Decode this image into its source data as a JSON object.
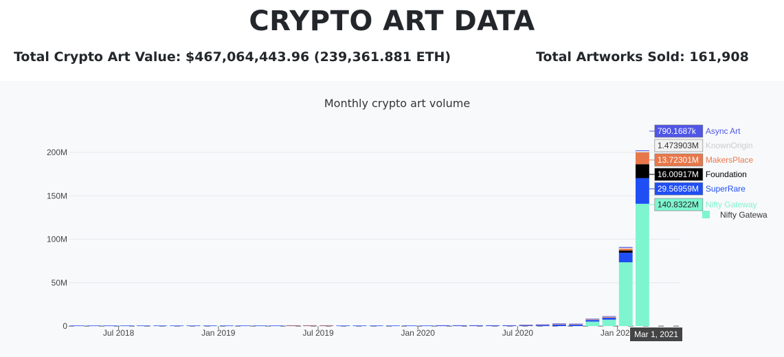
{
  "header": {
    "title": "CRYPTO ART DATA",
    "total_value": "Total Crypto Art Value: $467,064,443.96 (239,361.881 ETH)",
    "total_sold": "Total Artworks Sold: 161,908"
  },
  "colors": {
    "Nifty Gateway": "#7ef5cf",
    "SuperRare": "#1f4ef5",
    "Foundation": "#000000",
    "MakersPlace": "#e8784a",
    "KnownOrigin": "#f2f2f2",
    "Async Art": "#5056e6"
  },
  "chart_data": {
    "type": "bar",
    "stacked": true,
    "title": "Monthly crypto art volume",
    "xlabel": "",
    "ylabel": "",
    "ylim": [
      0,
      220000000
    ],
    "yticks": [
      "0",
      "50M",
      "100M",
      "150M",
      "200M"
    ],
    "xticks": [
      "Jul 2018",
      "Jan 2019",
      "Jul 2019",
      "Jan 2020",
      "Jul 2020",
      "Jan 2021"
    ],
    "grid": true,
    "categories": [
      "2018-04",
      "2018-05",
      "2018-06",
      "2018-07",
      "2018-08",
      "2018-09",
      "2018-10",
      "2018-11",
      "2018-12",
      "2019-01",
      "2019-02",
      "2019-03",
      "2019-04",
      "2019-05",
      "2019-06",
      "2019-07",
      "2019-08",
      "2019-09",
      "2019-10",
      "2019-11",
      "2019-12",
      "2020-01",
      "2020-02",
      "2020-03",
      "2020-04",
      "2020-05",
      "2020-06",
      "2020-07",
      "2020-08",
      "2020-09",
      "2020-10",
      "2020-11",
      "2020-12",
      "2021-01",
      "2021-02",
      "2021-03"
    ],
    "series": [
      {
        "name": "Nifty Gateway",
        "values": [
          0,
          0,
          0,
          0,
          0,
          0,
          0,
          0,
          0,
          0,
          0,
          0,
          0,
          0,
          0,
          0,
          0,
          0,
          0,
          0,
          0,
          0,
          0,
          0,
          0,
          0,
          0,
          0,
          0,
          0,
          0,
          5200000,
          7400000,
          73500000,
          140832200,
          0
        ]
      },
      {
        "name": "SuperRare",
        "values": [
          300000,
          300000,
          300000,
          300000,
          300000,
          300000,
          300000,
          300000,
          300000,
          300000,
          300000,
          300000,
          300000,
          300000,
          300000,
          300000,
          300000,
          300000,
          300000,
          300000,
          300000,
          300000,
          300000,
          300000,
          300000,
          300000,
          300000,
          600000,
          1000000,
          1600000,
          1500000,
          1800000,
          2200000,
          11000000,
          29569590,
          0
        ]
      },
      {
        "name": "Foundation",
        "values": [
          0,
          0,
          0,
          0,
          0,
          0,
          0,
          0,
          0,
          0,
          0,
          0,
          0,
          0,
          0,
          0,
          0,
          0,
          0,
          0,
          0,
          0,
          0,
          0,
          0,
          0,
          0,
          0,
          0,
          0,
          0,
          0,
          0,
          2500000,
          16009170,
          0
        ]
      },
      {
        "name": "MakersPlace",
        "values": [
          0,
          0,
          0,
          0,
          0,
          0,
          0,
          0,
          0,
          0,
          0,
          0,
          0,
          200000,
          600000,
          200000,
          0,
          0,
          0,
          0,
          0,
          0,
          0,
          0,
          0,
          0,
          0,
          300000,
          300000,
          600000,
          500000,
          600000,
          900000,
          2200000,
          13723010,
          0
        ]
      },
      {
        "name": "KnownOrigin",
        "values": [
          0,
          0,
          0,
          0,
          0,
          0,
          0,
          0,
          0,
          0,
          0,
          0,
          0,
          0,
          0,
          0,
          0,
          0,
          0,
          0,
          0,
          0,
          0,
          0,
          0,
          0,
          0,
          0,
          0,
          100000,
          100000,
          200000,
          300000,
          1000000,
          1473903,
          0
        ]
      },
      {
        "name": "Async Art",
        "values": [
          0,
          0,
          0,
          0,
          0,
          0,
          0,
          0,
          0,
          0,
          0,
          0,
          0,
          0,
          0,
          0,
          0,
          0,
          0,
          0,
          0,
          0,
          100000,
          100000,
          100000,
          100000,
          100000,
          200000,
          200000,
          300000,
          300000,
          400000,
          500000,
          900000,
          790168.7,
          0
        ]
      }
    ],
    "hover": {
      "x_label": "Mar 1, 2021",
      "entries": [
        {
          "value": "790.1687k",
          "series": "Async Art"
        },
        {
          "value": "1.473903M",
          "series": "KnownOrigin"
        },
        {
          "value": "13.72301M",
          "series": "MakersPlace"
        },
        {
          "value": "16.00917M",
          "series": "Foundation"
        },
        {
          "value": "29.56959M",
          "series": "SuperRare"
        },
        {
          "value": "140.8322M",
          "series": "Nifty Gateway"
        }
      ]
    },
    "legend": {
      "placement": "right",
      "visible_fragments": [
        "Async Art",
        "KnownOrigin",
        "MakersPlace",
        "Foundation",
        "SuperRare",
        "Nifty Gatewa"
      ]
    }
  }
}
